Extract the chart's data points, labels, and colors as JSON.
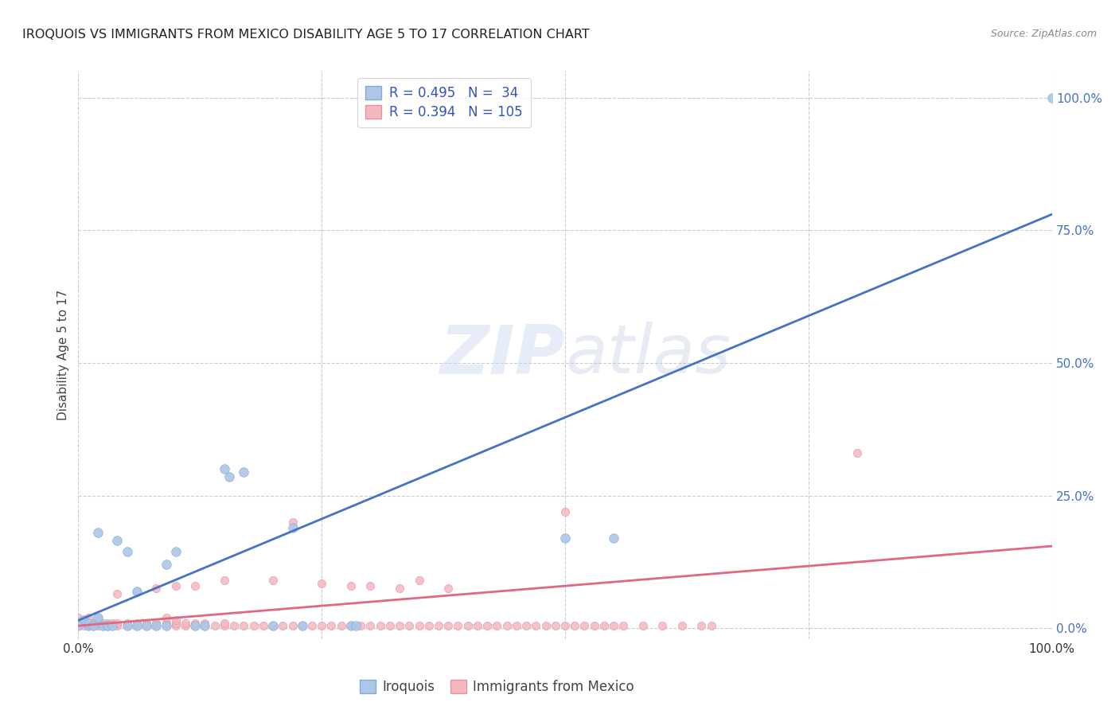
{
  "title": "IROQUOIS VS IMMIGRANTS FROM MEXICO DISABILITY AGE 5 TO 17 CORRELATION CHART",
  "source": "Source: ZipAtlas.com",
  "ylabel": "Disability Age 5 to 17",
  "xlim": [
    0,
    1.0
  ],
  "ylim": [
    -0.02,
    1.05
  ],
  "ytick_positions": [
    0.0,
    0.25,
    0.5,
    0.75,
    1.0
  ],
  "grid_color": "#cccccc",
  "background_color": "#ffffff",
  "watermark_text": "ZIPatlas",
  "legend": {
    "series1_label": "Iroquois",
    "series2_label": "Immigrants from Mexico",
    "series1_R": "0.495",
    "series1_N": "34",
    "series2_R": "0.394",
    "series2_N": "105",
    "color1": "#aec6e8",
    "color2": "#f4b8c1",
    "edge1": "#7bafd4",
    "edge2": "#e8929e"
  },
  "blue_line_color": "#4472c4",
  "pink_line_color": "#e06880",
  "blue_line": {
    "x0": 0.0,
    "y0": 0.015,
    "x1": 1.0,
    "y1": 0.78
  },
  "pink_line": {
    "x0": 0.0,
    "y0": 0.005,
    "x1": 1.0,
    "y1": 0.155
  },
  "blue_dots_x": [
    0.005,
    0.01,
    0.01,
    0.015,
    0.02,
    0.025,
    0.03,
    0.03,
    0.035,
    0.04,
    0.05,
    0.05,
    0.06,
    0.06,
    0.07,
    0.08,
    0.09,
    0.09,
    0.1,
    0.12,
    0.13,
    0.15,
    0.155,
    0.17,
    0.2,
    0.22,
    0.23,
    0.28,
    0.5,
    0.55,
    0.02,
    0.285,
    1.0,
    0.0
  ],
  "blue_dots_y": [
    0.015,
    0.005,
    0.01,
    0.005,
    0.02,
    0.005,
    0.005,
    0.005,
    0.005,
    0.165,
    0.145,
    0.005,
    0.07,
    0.005,
    0.005,
    0.005,
    0.12,
    0.005,
    0.145,
    0.005,
    0.005,
    0.3,
    0.285,
    0.295,
    0.005,
    0.19,
    0.005,
    0.005,
    0.17,
    0.17,
    0.18,
    0.005,
    1.0,
    0.005
  ],
  "pink_dots_x": [
    0.0,
    0.0,
    0.005,
    0.005,
    0.01,
    0.01,
    0.01,
    0.015,
    0.015,
    0.02,
    0.02,
    0.02,
    0.025,
    0.025,
    0.03,
    0.03,
    0.035,
    0.035,
    0.04,
    0.04,
    0.05,
    0.05,
    0.06,
    0.06,
    0.07,
    0.07,
    0.08,
    0.08,
    0.09,
    0.09,
    0.09,
    0.1,
    0.1,
    0.1,
    0.11,
    0.11,
    0.12,
    0.12,
    0.13,
    0.13,
    0.14,
    0.15,
    0.15,
    0.16,
    0.17,
    0.18,
    0.19,
    0.2,
    0.21,
    0.22,
    0.23,
    0.24,
    0.25,
    0.26,
    0.27,
    0.28,
    0.29,
    0.3,
    0.31,
    0.32,
    0.33,
    0.34,
    0.35,
    0.36,
    0.37,
    0.38,
    0.39,
    0.4,
    0.41,
    0.42,
    0.43,
    0.44,
    0.45,
    0.46,
    0.47,
    0.48,
    0.49,
    0.5,
    0.51,
    0.52,
    0.53,
    0.54,
    0.55,
    0.56,
    0.58,
    0.6,
    0.62,
    0.64,
    0.65,
    0.5,
    0.8,
    0.35,
    0.25,
    0.28,
    0.3,
    0.33,
    0.38,
    0.22,
    0.2,
    0.15,
    0.12,
    0.1,
    0.08,
    0.06,
    0.04
  ],
  "pink_dots_y": [
    0.01,
    0.02,
    0.005,
    0.015,
    0.005,
    0.01,
    0.02,
    0.005,
    0.01,
    0.005,
    0.01,
    0.02,
    0.005,
    0.01,
    0.005,
    0.01,
    0.005,
    0.01,
    0.005,
    0.01,
    0.005,
    0.01,
    0.005,
    0.01,
    0.005,
    0.01,
    0.005,
    0.01,
    0.005,
    0.01,
    0.02,
    0.005,
    0.01,
    0.015,
    0.005,
    0.01,
    0.005,
    0.01,
    0.005,
    0.01,
    0.005,
    0.005,
    0.01,
    0.005,
    0.005,
    0.005,
    0.005,
    0.005,
    0.005,
    0.005,
    0.005,
    0.005,
    0.005,
    0.005,
    0.005,
    0.005,
    0.005,
    0.005,
    0.005,
    0.005,
    0.005,
    0.005,
    0.005,
    0.005,
    0.005,
    0.005,
    0.005,
    0.005,
    0.005,
    0.005,
    0.005,
    0.005,
    0.005,
    0.005,
    0.005,
    0.005,
    0.005,
    0.005,
    0.005,
    0.005,
    0.005,
    0.005,
    0.005,
    0.005,
    0.005,
    0.005,
    0.005,
    0.005,
    0.005,
    0.22,
    0.33,
    0.09,
    0.085,
    0.08,
    0.08,
    0.075,
    0.075,
    0.2,
    0.09,
    0.09,
    0.08,
    0.08,
    0.075,
    0.07,
    0.065
  ]
}
